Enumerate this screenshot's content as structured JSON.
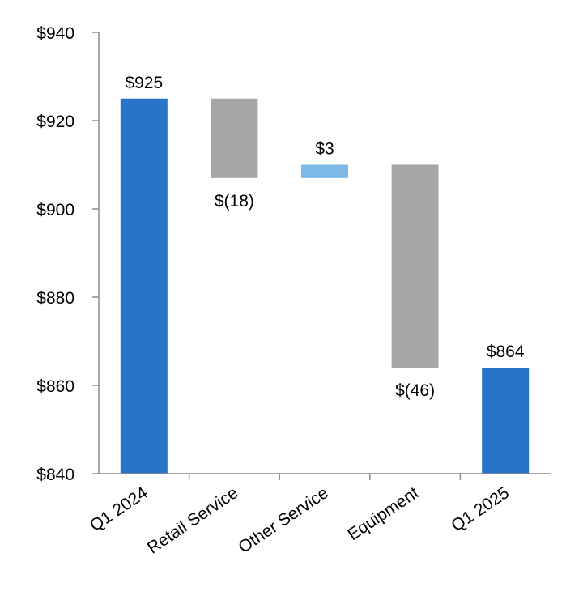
{
  "chart_data": {
    "type": "bar",
    "subtype": "waterfall",
    "title": "",
    "xlabel": "",
    "ylabel": "",
    "ylim": [
      840,
      940
    ],
    "y_ticks": [
      840,
      860,
      880,
      900,
      920,
      940
    ],
    "y_tick_labels": [
      "$840",
      "$860",
      "$880",
      "$900",
      "$920",
      "$940"
    ],
    "grid": false,
    "legend": "none",
    "colors": {
      "total": "#2874c8",
      "decrease": "#a6a6a6",
      "increase": "#7db8e6",
      "axis": "#8c8c8c"
    },
    "categories": [
      "Q1 2024",
      "Retail Service",
      "Other Service",
      "Equipment",
      "Q1 2025"
    ],
    "bars": [
      {
        "category": "Q1 2024",
        "kind": "total",
        "start": 840,
        "end": 925,
        "label": "$925",
        "label_pos": "above"
      },
      {
        "category": "Retail Service",
        "kind": "decrease",
        "start": 925,
        "end": 907,
        "label": "$(18)",
        "label_pos": "below"
      },
      {
        "category": "Other Service",
        "kind": "increase",
        "start": 907,
        "end": 910,
        "label": "$3",
        "label_pos": "above"
      },
      {
        "category": "Equipment",
        "kind": "decrease",
        "start": 910,
        "end": 864,
        "label": "$(46)",
        "label_pos": "below"
      },
      {
        "category": "Q1 2025",
        "kind": "total",
        "start": 840,
        "end": 864,
        "label": "$864",
        "label_pos": "above"
      }
    ]
  }
}
